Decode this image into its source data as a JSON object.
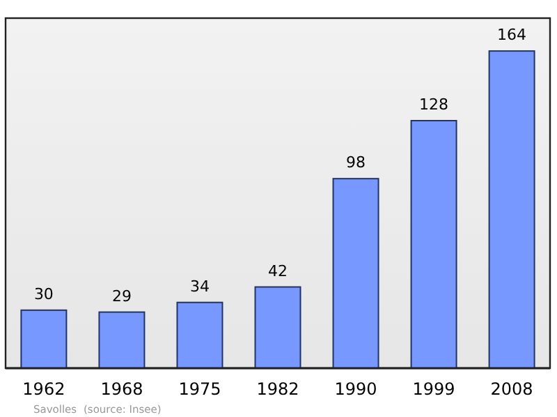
{
  "chart_data": {
    "type": "bar",
    "categories": [
      "1962",
      "1968",
      "1975",
      "1982",
      "1990",
      "1999",
      "2008"
    ],
    "values": [
      30,
      29,
      34,
      42,
      98,
      128,
      164
    ],
    "color": "#7799ff",
    "ylim": [
      0,
      181
    ],
    "data_labels": true,
    "grid": false,
    "annotations": [
      "Savolles",
      "(source: Insee)"
    ]
  }
}
